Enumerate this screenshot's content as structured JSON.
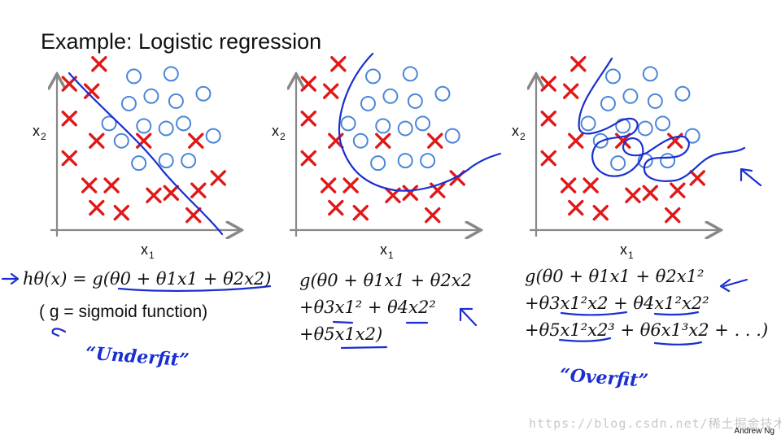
{
  "slide": {
    "title": "Example: Logistic regression",
    "author": "Andrew Ng",
    "watermark": "https://blog.csdn.net/稀土掘金技术社区"
  },
  "axis_labels": {
    "x": "x",
    "x_sub": "1",
    "y": "x",
    "y_sub": "2"
  },
  "panels": [
    {
      "formula_lines": [
        "hθ(x) = g(θ0 + θ1x1 + θ2x2)"
      ],
      "note": "( g = sigmoid function)",
      "handwritten": "“Underfit”"
    },
    {
      "formula_lines": [
        "g(θ0 + θ1x1 + θ2x2",
        "+θ3x1² + θ4x2²",
        "+θ5x1x2)"
      ],
      "note": "",
      "handwritten": ""
    },
    {
      "formula_lines": [
        "g(θ0 + θ1x1 + θ2x1²",
        "+θ3x1²x2 + θ4x1²x2²",
        "+θ5x1²x2³ + θ6x1³x2 + . . .)"
      ],
      "note": "",
      "handwritten": "“Overfit”"
    }
  ],
  "chart_data": {
    "type": "scatter",
    "series": [
      {
        "name": "",
        "marker": "cross",
        "color": "#e01818",
        "points": [
          [
            1.7,
            6.7
          ],
          [
            0.5,
            5.9
          ],
          [
            1.4,
            5.6
          ],
          [
            0.5,
            4.5
          ],
          [
            1.6,
            3.6
          ],
          [
            3.5,
            3.6
          ],
          [
            5.6,
            3.6
          ],
          [
            0.5,
            2.9
          ],
          [
            1.3,
            1.8
          ],
          [
            2.2,
            1.8
          ],
          [
            3.9,
            1.4
          ],
          [
            4.6,
            1.5
          ],
          [
            5.7,
            1.6
          ],
          [
            6.5,
            2.1
          ],
          [
            1.6,
            0.9
          ],
          [
            2.6,
            0.7
          ],
          [
            5.5,
            0.6
          ]
        ]
      },
      {
        "name": "",
        "marker": "circle",
        "color": "#4a86d8",
        "points": [
          [
            3.1,
            6.2
          ],
          [
            4.6,
            6.3
          ],
          [
            2.9,
            5.1
          ],
          [
            3.8,
            5.4
          ],
          [
            4.8,
            5.2
          ],
          [
            5.9,
            5.5
          ],
          [
            2.1,
            4.3
          ],
          [
            3.5,
            4.2
          ],
          [
            4.4,
            4.1
          ],
          [
            5.1,
            4.3
          ],
          [
            6.3,
            3.8
          ],
          [
            2.6,
            3.6
          ],
          [
            3.3,
            2.7
          ],
          [
            4.4,
            2.8
          ],
          [
            5.3,
            2.8
          ]
        ]
      }
    ],
    "xlim": [
      0,
      7.4
    ],
    "ylim": [
      0,
      7.4
    ],
    "grid": false
  }
}
